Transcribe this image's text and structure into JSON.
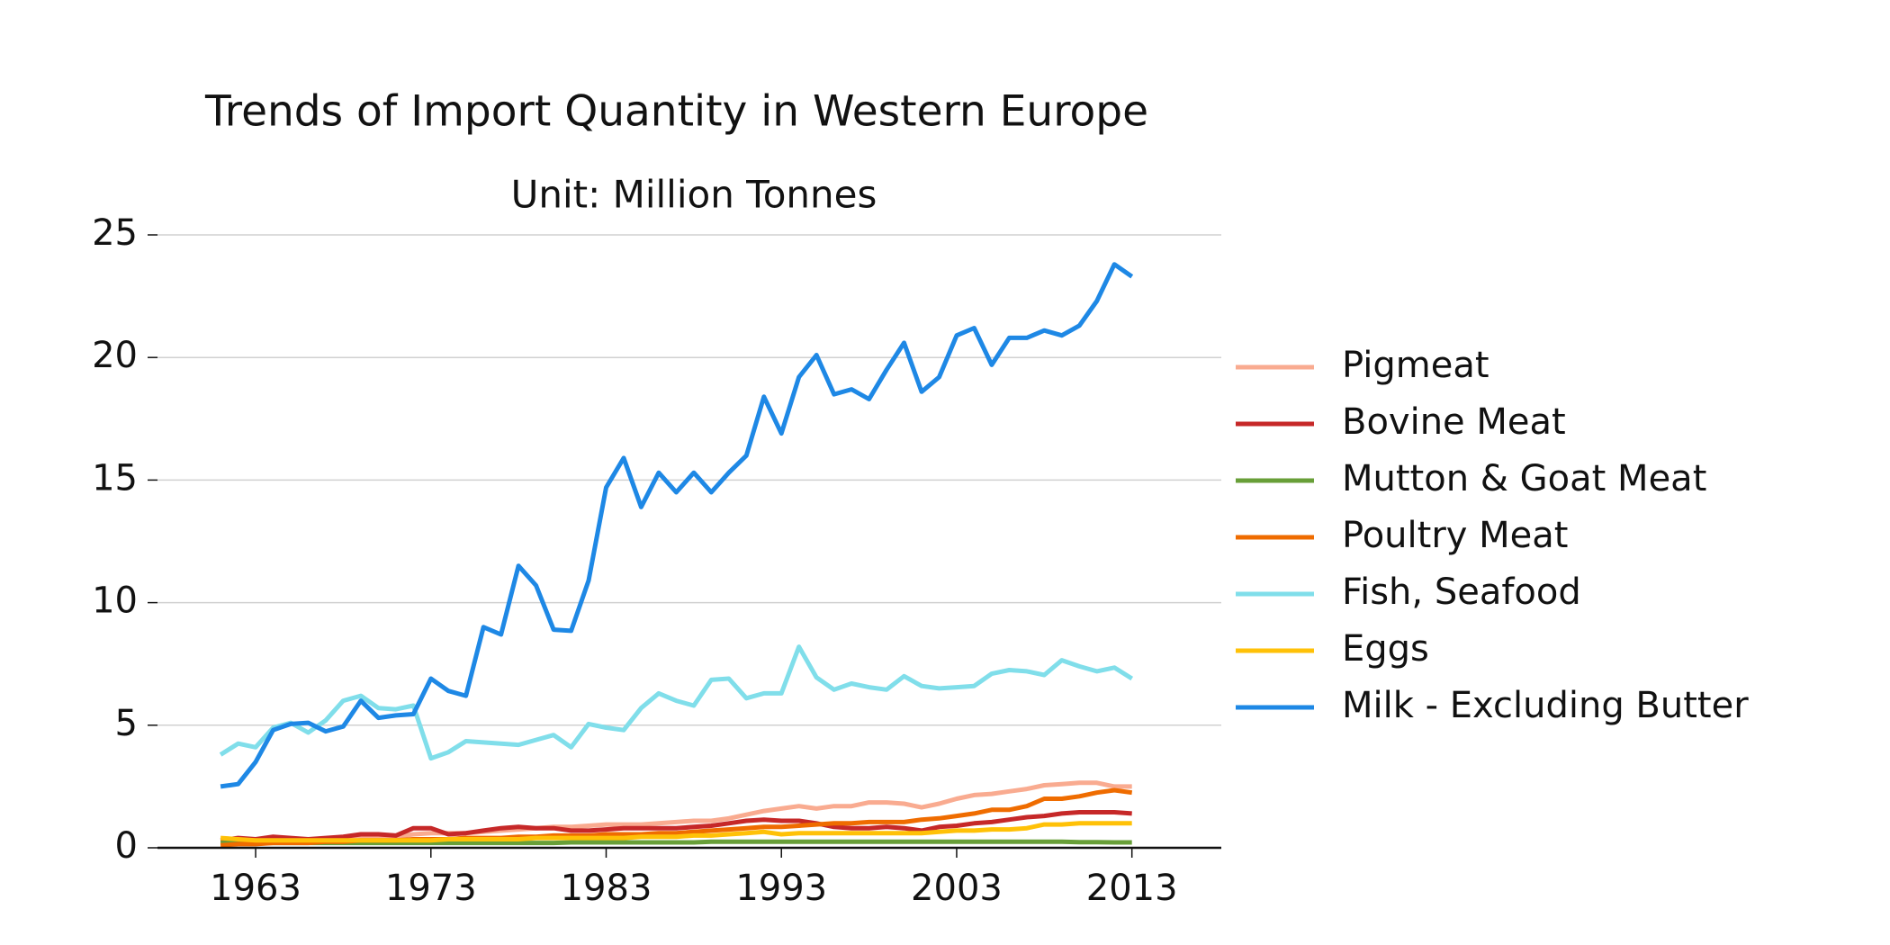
{
  "chart_data": {
    "type": "line",
    "title": "Trends of Import Quantity in Western Europe",
    "subtitle": "Unit: Million Tonnes",
    "x": [
      1961,
      1962,
      1963,
      1964,
      1965,
      1966,
      1967,
      1968,
      1969,
      1970,
      1971,
      1972,
      1973,
      1974,
      1975,
      1976,
      1977,
      1978,
      1979,
      1980,
      1981,
      1982,
      1983,
      1984,
      1985,
      1986,
      1987,
      1988,
      1989,
      1990,
      1991,
      1992,
      1993,
      1994,
      1995,
      1996,
      1997,
      1998,
      1999,
      2000,
      2001,
      2002,
      2003,
      2004,
      2005,
      2006,
      2007,
      2008,
      2009,
      2010,
      2011,
      2012,
      2013
    ],
    "xlim": [
      1957.4,
      2018.1
    ],
    "xticks": [
      1963,
      1973,
      1983,
      1993,
      2003,
      2013
    ],
    "ylim": [
      0,
      25
    ],
    "yticks": [
      0,
      5,
      10,
      15,
      20,
      25
    ],
    "grid": true,
    "legend": "right",
    "series": [
      {
        "name": "Pigmeat",
        "color": "#f9ab90",
        "values": [
          0.3,
          0.3,
          0.3,
          0.35,
          0.35,
          0.35,
          0.35,
          0.4,
          0.4,
          0.45,
          0.45,
          0.55,
          0.6,
          0.6,
          0.6,
          0.65,
          0.7,
          0.75,
          0.8,
          0.85,
          0.85,
          0.9,
          0.95,
          0.95,
          0.95,
          1.0,
          1.05,
          1.1,
          1.1,
          1.2,
          1.35,
          1.5,
          1.6,
          1.7,
          1.6,
          1.7,
          1.7,
          1.85,
          1.85,
          1.8,
          1.65,
          1.8,
          2.0,
          2.15,
          2.2,
          2.3,
          2.4,
          2.55,
          2.6,
          2.65,
          2.65,
          2.5,
          2.5
        ]
      },
      {
        "name": "Bovine Meat",
        "color": "#c62828",
        "values": [
          0.3,
          0.4,
          0.35,
          0.45,
          0.4,
          0.35,
          0.4,
          0.45,
          0.55,
          0.55,
          0.5,
          0.8,
          0.8,
          0.55,
          0.6,
          0.7,
          0.8,
          0.85,
          0.8,
          0.8,
          0.7,
          0.7,
          0.75,
          0.8,
          0.8,
          0.8,
          0.8,
          0.85,
          0.9,
          1.0,
          1.1,
          1.15,
          1.1,
          1.1,
          1.0,
          0.85,
          0.8,
          0.8,
          0.85,
          0.8,
          0.7,
          0.85,
          0.9,
          1.0,
          1.05,
          1.15,
          1.25,
          1.3,
          1.4,
          1.45,
          1.45,
          1.45,
          1.4
        ]
      },
      {
        "name": "Mutton & Goat Meat",
        "color": "#689f38",
        "values": [
          0.2,
          0.2,
          0.2,
          0.2,
          0.2,
          0.2,
          0.2,
          0.2,
          0.2,
          0.2,
          0.2,
          0.2,
          0.2,
          0.2,
          0.2,
          0.2,
          0.2,
          0.2,
          0.2,
          0.2,
          0.22,
          0.22,
          0.22,
          0.22,
          0.22,
          0.22,
          0.22,
          0.22,
          0.25,
          0.25,
          0.25,
          0.25,
          0.25,
          0.25,
          0.25,
          0.25,
          0.25,
          0.25,
          0.25,
          0.25,
          0.25,
          0.25,
          0.25,
          0.25,
          0.25,
          0.25,
          0.25,
          0.25,
          0.25,
          0.23,
          0.23,
          0.22,
          0.22
        ]
      },
      {
        "name": "Poultry Meat",
        "color": "#ef6c00",
        "values": [
          0.1,
          0.15,
          0.15,
          0.2,
          0.2,
          0.2,
          0.25,
          0.25,
          0.3,
          0.3,
          0.3,
          0.35,
          0.35,
          0.35,
          0.4,
          0.4,
          0.4,
          0.45,
          0.45,
          0.5,
          0.5,
          0.5,
          0.55,
          0.55,
          0.55,
          0.6,
          0.6,
          0.65,
          0.7,
          0.75,
          0.8,
          0.85,
          0.85,
          0.9,
          0.95,
          1.0,
          1.0,
          1.05,
          1.05,
          1.05,
          1.15,
          1.2,
          1.3,
          1.4,
          1.55,
          1.55,
          1.7,
          2.0,
          2.0,
          2.1,
          2.25,
          2.35,
          2.25
        ]
      },
      {
        "name": "Fish, Seafood",
        "color": "#80deea",
        "values": [
          3.8,
          4.25,
          4.1,
          4.9,
          5.1,
          4.7,
          5.2,
          6.0,
          6.2,
          5.7,
          5.65,
          5.8,
          3.65,
          3.9,
          4.35,
          4.3,
          4.25,
          4.2,
          4.4,
          4.6,
          4.1,
          5.05,
          4.9,
          4.8,
          5.7,
          6.3,
          6.0,
          5.8,
          6.85,
          6.9,
          6.1,
          6.3,
          6.3,
          8.2,
          6.95,
          6.45,
          6.7,
          6.55,
          6.45,
          7.0,
          6.6,
          6.5,
          6.55,
          6.6,
          7.1,
          7.25,
          7.2,
          7.05,
          7.65,
          7.4,
          7.2,
          7.35,
          6.9
        ]
      },
      {
        "name": "Eggs",
        "color": "#ffc107",
        "values": [
          0.4,
          0.35,
          0.3,
          0.3,
          0.3,
          0.3,
          0.3,
          0.3,
          0.3,
          0.3,
          0.3,
          0.3,
          0.3,
          0.35,
          0.35,
          0.35,
          0.35,
          0.35,
          0.4,
          0.4,
          0.4,
          0.4,
          0.4,
          0.4,
          0.45,
          0.45,
          0.45,
          0.5,
          0.5,
          0.55,
          0.6,
          0.65,
          0.55,
          0.6,
          0.6,
          0.6,
          0.6,
          0.6,
          0.6,
          0.6,
          0.6,
          0.65,
          0.7,
          0.7,
          0.75,
          0.75,
          0.8,
          0.95,
          0.95,
          1.0,
          1.0,
          1.0,
          1.0
        ]
      },
      {
        "name": "Milk - Excluding Butter",
        "color": "#1e88e5",
        "values": [
          2.5,
          2.6,
          3.5,
          4.8,
          5.05,
          5.1,
          4.75,
          4.95,
          6.0,
          5.3,
          5.4,
          5.45,
          6.9,
          6.4,
          6.2,
          9.0,
          8.7,
          11.5,
          10.7,
          8.9,
          8.85,
          10.9,
          14.7,
          15.9,
          13.9,
          15.3,
          14.5,
          15.3,
          14.5,
          15.3,
          16.0,
          18.4,
          16.9,
          19.2,
          20.1,
          18.5,
          18.7,
          18.3,
          19.5,
          20.6,
          18.6,
          19.2,
          20.9,
          21.2,
          19.7,
          20.8,
          20.8,
          21.1,
          20.9,
          21.3,
          22.3,
          23.8,
          23.3
        ]
      }
    ]
  }
}
